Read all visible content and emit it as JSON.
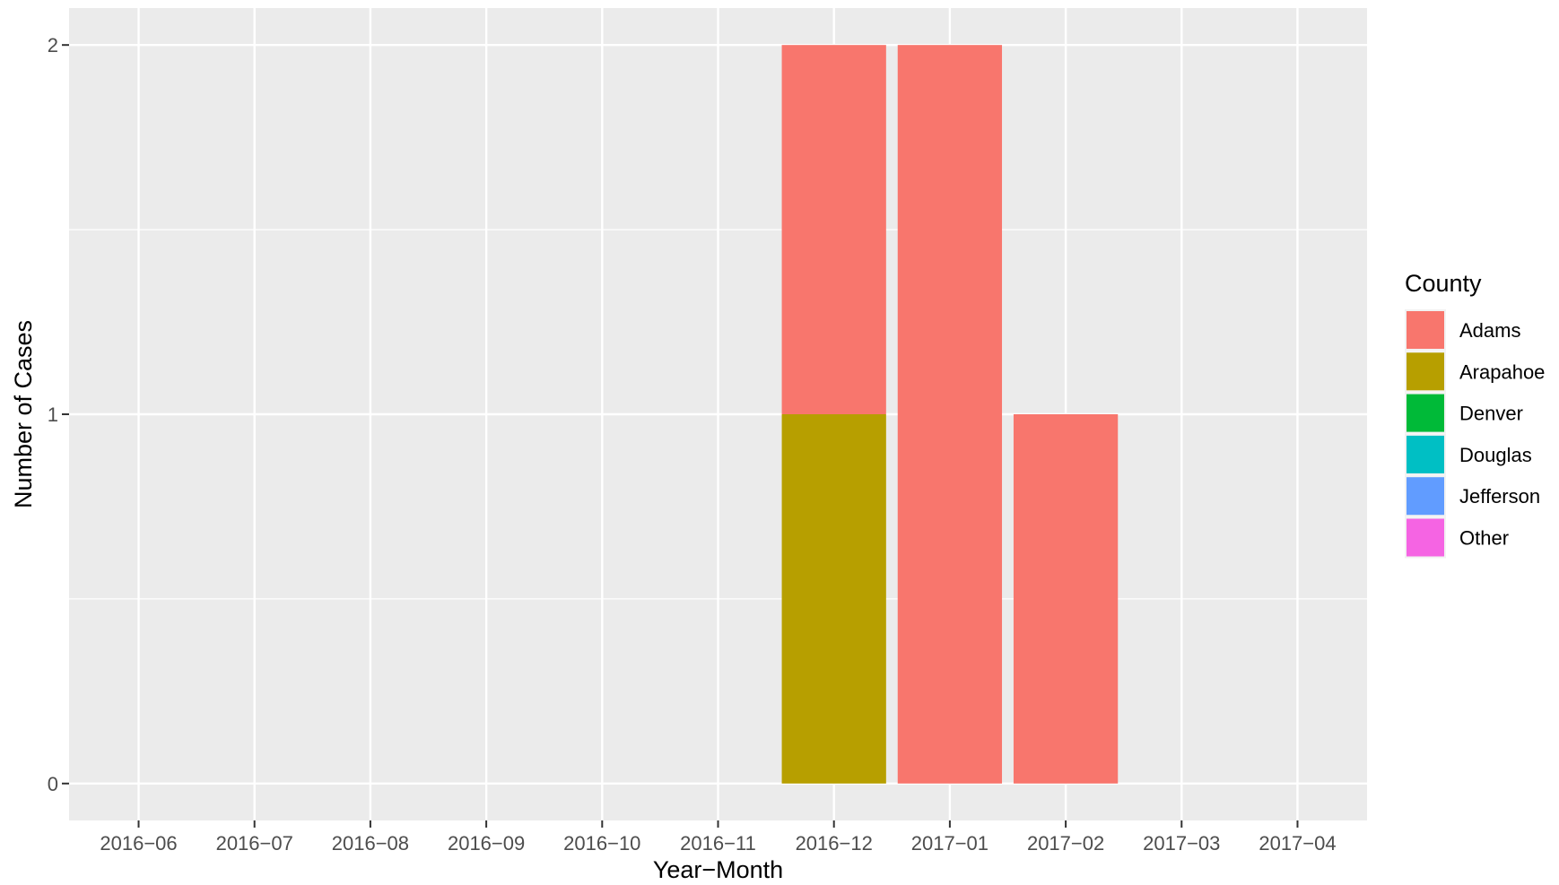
{
  "chart_data": {
    "type": "bar",
    "stacked": true,
    "xlabel": "Year−Month",
    "ylabel": "Number of Cases",
    "categories": [
      "2016−06",
      "2016−07",
      "2016−08",
      "2016−09",
      "2016−10",
      "2016−11",
      "2016−12",
      "2017−01",
      "2017−02",
      "2017−03",
      "2017−04"
    ],
    "y_ticks": [
      "0",
      "1",
      "2"
    ],
    "ylim": [
      -0.1,
      2.1
    ],
    "grid": true,
    "legend": {
      "title": "County",
      "placement": "right"
    },
    "series": [
      {
        "name": "Adams",
        "color": "#F8766D",
        "values": [
          0,
          0,
          0,
          0,
          0,
          0,
          1,
          2,
          1,
          0,
          0
        ]
      },
      {
        "name": "Arapahoe",
        "color": "#B79F00",
        "values": [
          0,
          0,
          0,
          0,
          0,
          0,
          1,
          0,
          0,
          0,
          0
        ]
      },
      {
        "name": "Denver",
        "color": "#00BA38",
        "values": [
          0,
          0,
          0,
          0,
          0,
          0,
          0,
          0,
          0,
          0,
          0
        ]
      },
      {
        "name": "Douglas",
        "color": "#00BFC4",
        "values": [
          0,
          0,
          0,
          0,
          0,
          0,
          0,
          0,
          0,
          0,
          0
        ]
      },
      {
        "name": "Jefferson",
        "color": "#619CFF",
        "values": [
          0,
          0,
          0,
          0,
          0,
          0,
          0,
          0,
          0,
          0,
          0
        ]
      },
      {
        "name": "Other",
        "color": "#F564E3",
        "values": [
          0,
          0,
          0,
          0,
          0,
          0,
          0,
          0,
          0,
          0,
          0
        ]
      }
    ]
  }
}
